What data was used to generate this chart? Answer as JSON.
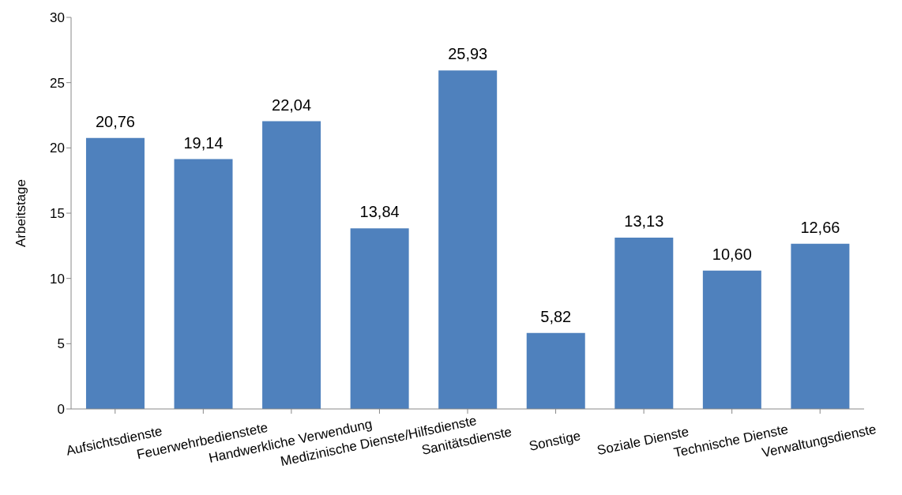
{
  "chart_data": {
    "type": "bar",
    "ylabel": "Arbeitstage",
    "categories": [
      "Aufsichtsdienste",
      "Feuerwehrbedienstete",
      "Handwerkliche Verwendung",
      "Medizinische Dienste/Hilfsdienste",
      "Sanitätsdienste",
      "Sonstige",
      "Soziale Dienste",
      "Technische Dienste",
      "Verwaltungsdienste"
    ],
    "values": [
      20.76,
      19.14,
      22.04,
      13.84,
      25.93,
      5.82,
      13.13,
      10.6,
      12.66
    ],
    "value_labels": [
      "20,76",
      "19,14",
      "22,04",
      "13,84",
      "25,93",
      "5,82",
      "13,13",
      "10,60",
      "12,66"
    ],
    "color": "#4f81bd",
    "ylim": [
      0,
      30
    ],
    "yticks": [
      0,
      5,
      10,
      15,
      20,
      25,
      30
    ],
    "grid": false,
    "legend": false
  }
}
